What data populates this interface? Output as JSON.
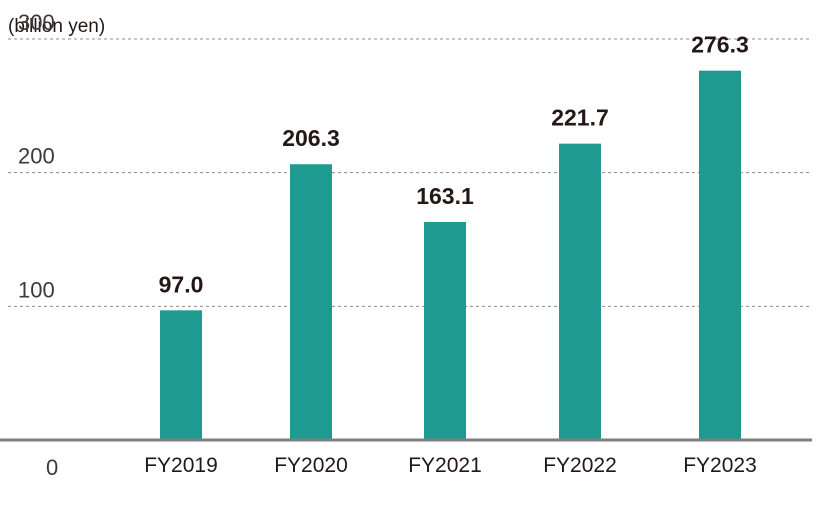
{
  "chart_data": {
    "type": "bar",
    "unit_label": "(billion yen)",
    "categories": [
      "FY2019",
      "FY2020",
      "FY2021",
      "FY2022",
      "FY2023"
    ],
    "values": [
      97.0,
      206.3,
      163.1,
      221.7,
      276.3
    ],
    "value_labels": [
      "97.0",
      "206.3",
      "163.1",
      "221.7",
      "276.3"
    ],
    "yticks": [
      "0",
      "100",
      "200",
      "300"
    ],
    "ylim": [
      0,
      300
    ],
    "grid": true,
    "bar_color": "#1e9a90",
    "grid_color": "#8c8c8c",
    "baseline_color": "#7f7f7f"
  }
}
